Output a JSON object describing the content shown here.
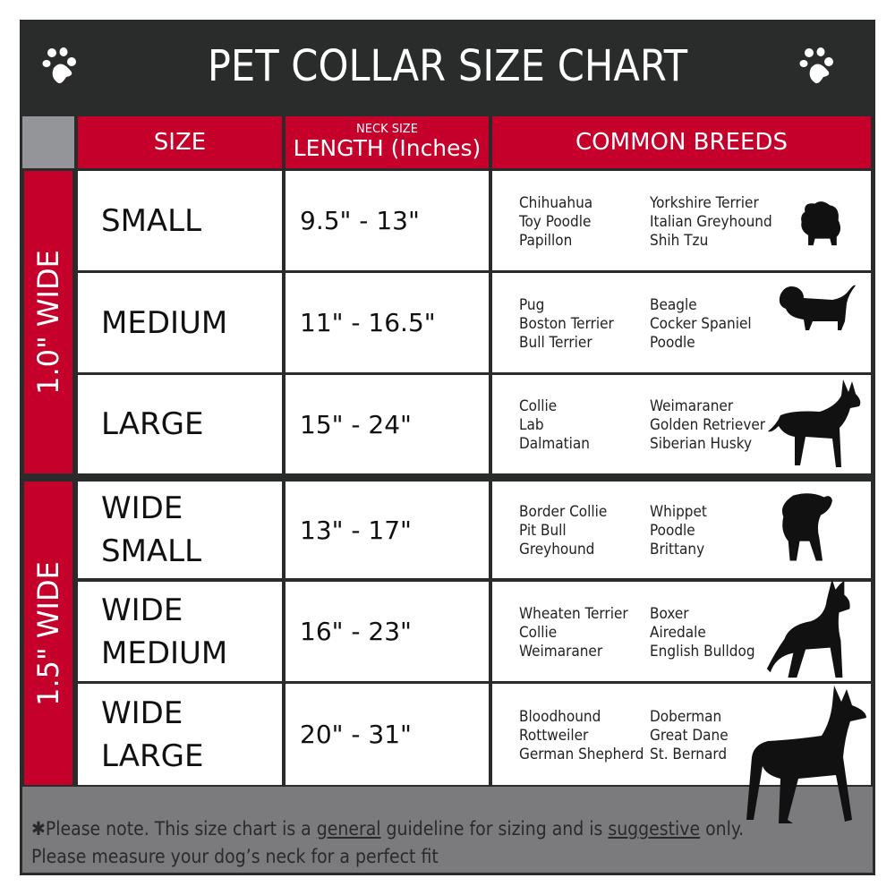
{
  "title": "PET COLLAR SIZE CHART",
  "headers": {
    "size": "SIZE",
    "length_small": "NECK SIZE",
    "length": "LENGTH (Inches)",
    "breeds": "COMMON BREEDS"
  },
  "groups": [
    {
      "label": "1.0\" WIDE"
    },
    {
      "label": "1.5\" WIDE"
    }
  ],
  "colors": {
    "title_bg": "#2a2b2b",
    "accent_red": "#c4002b",
    "footer_gray": "#7b7b7e",
    "corner_gray": "#939598"
  },
  "rows": [
    {
      "size": [
        "SMALL"
      ],
      "length": "9.5\" - 13\"",
      "breeds_a": [
        "Chihuahua",
        "Toy Poodle",
        "Papillon"
      ],
      "breeds_b": [
        "Yorkshire Terrier",
        "Italian Greyhound",
        "Shih Tzu"
      ],
      "icon": "small-dog-silhouette-icon"
    },
    {
      "size": [
        "MEDIUM"
      ],
      "length": "11\" - 16.5\"",
      "breeds_a": [
        "Pug",
        "Boston Terrier",
        "Bull Terrier"
      ],
      "breeds_b": [
        "Beagle",
        "Cocker Spaniel",
        "Poodle"
      ],
      "icon": "medium-dog-silhouette-icon"
    },
    {
      "size": [
        "LARGE"
      ],
      "length": "15\" - 24\"",
      "breeds_a": [
        "Collie",
        "Lab",
        "Dalmatian"
      ],
      "breeds_b": [
        "Weimaraner",
        "Golden Retriever",
        "Siberian Husky"
      ],
      "icon": "large-dog-silhouette-icon"
    },
    {
      "size": [
        "WIDE",
        "SMALL"
      ],
      "length": "13\" - 17\"",
      "breeds_a": [
        "Border Collie",
        "Pit Bull",
        "Greyhound"
      ],
      "breeds_b": [
        "Whippet",
        "Poodle",
        "Brittany"
      ],
      "icon": "bulldog-silhouette-icon"
    },
    {
      "size": [
        "WIDE",
        "MEDIUM"
      ],
      "length": "16\" - 23\"",
      "breeds_a": [
        "Wheaten Terrier",
        "Collie",
        "Weimaraner"
      ],
      "breeds_b": [
        "Boxer",
        "Airedale",
        "English Bulldog"
      ],
      "icon": "pitbull-silhouette-icon"
    },
    {
      "size": [
        "WIDE",
        "LARGE"
      ],
      "length": "20\" - 31\"",
      "breeds_a": [
        "Bloodhound",
        "Rottweiler",
        "German Shepherd"
      ],
      "breeds_b": [
        "Doberman",
        "Great Dane",
        "St. Bernard"
      ],
      "icon": "doberman-silhouette-icon"
    }
  ],
  "footer": {
    "star": "✱",
    "p1": "Please note. This size chart is a ",
    "u1": "general",
    "p2": " guideline for sizing and is ",
    "u2": "suggestive",
    "p3": " only.",
    "line2": "Please measure your dog’s neck for a perfect fit"
  }
}
